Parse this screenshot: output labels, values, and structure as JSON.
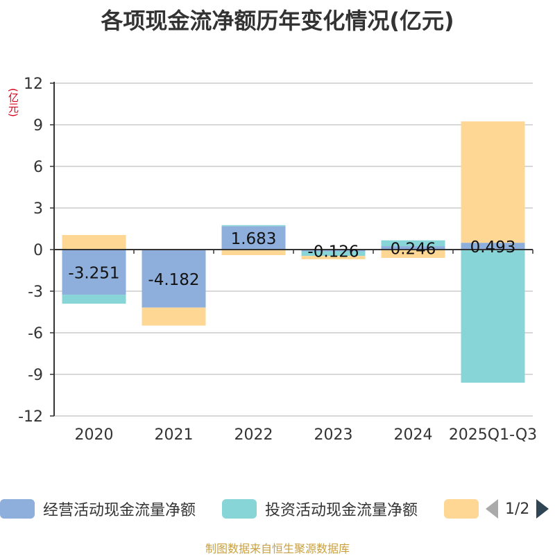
{
  "chart_data": {
    "type": "bar",
    "stacked": true,
    "title": "各项现金流净额历年变化情况(亿元)",
    "ylabel": "(亿元)",
    "ylim": [
      -12,
      12
    ],
    "yticks": [
      12,
      9,
      6,
      3,
      0,
      -3,
      -6,
      -9,
      -12
    ],
    "categories": [
      "2020",
      "2021",
      "2022",
      "2023",
      "2024",
      "2025Q1-Q3"
    ],
    "series": [
      {
        "name": "经营活动现金流量净额",
        "color": "#8eaedb",
        "values": [
          -3.251,
          -4.182,
          1.683,
          -0.126,
          0.246,
          0.493
        ],
        "labels": [
          "-3.251",
          "-4.182",
          "1.683",
          "-0.126",
          "0.246",
          "0.493"
        ]
      },
      {
        "name": "投资活动现金流量净额",
        "color": "#88d5d8",
        "values": [
          -0.65,
          0.0,
          0.08,
          -0.33,
          0.42,
          -9.6
        ]
      },
      {
        "name": "",
        "color": "#fed795",
        "values": [
          1.05,
          -1.3,
          -0.4,
          -0.24,
          -0.6,
          8.75
        ]
      }
    ],
    "legend_position": "bottom"
  },
  "legend": {
    "page": "1/2",
    "items": [
      {
        "label": "经营活动现金流量净额",
        "color": "#8eaedb"
      },
      {
        "label": "投资活动现金流量净额",
        "color": "#88d5d8"
      },
      {
        "label": "",
        "color": "#fed795"
      }
    ]
  },
  "footer": "制图数据来自恒生聚源数据库"
}
